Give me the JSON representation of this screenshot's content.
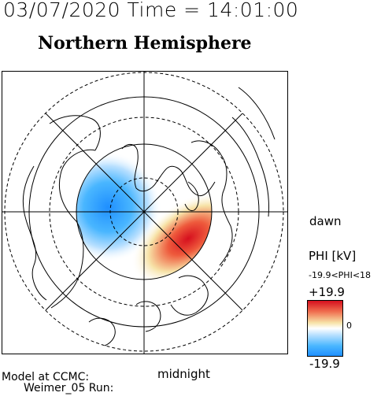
{
  "header": {
    "timestamp": "03/07/2020 Time = 14:01:00",
    "hemisphere": "Northern Hemisphere"
  },
  "plot": {
    "label_dawn": "dawn",
    "label_midnight": "midnight"
  },
  "legend": {
    "title": "PHI [kV]",
    "range_text": "-19.9<PHI<18",
    "max_label": "+19.9",
    "zero_label": "0",
    "min_label": "-19.9",
    "colors": {
      "high": "#d60f1e",
      "mid": "#ffffff",
      "low": "#1f8fff"
    }
  },
  "footer": {
    "model_line": "Model at CCMC:",
    "run_line": "Weimer_05 Run:"
  }
}
